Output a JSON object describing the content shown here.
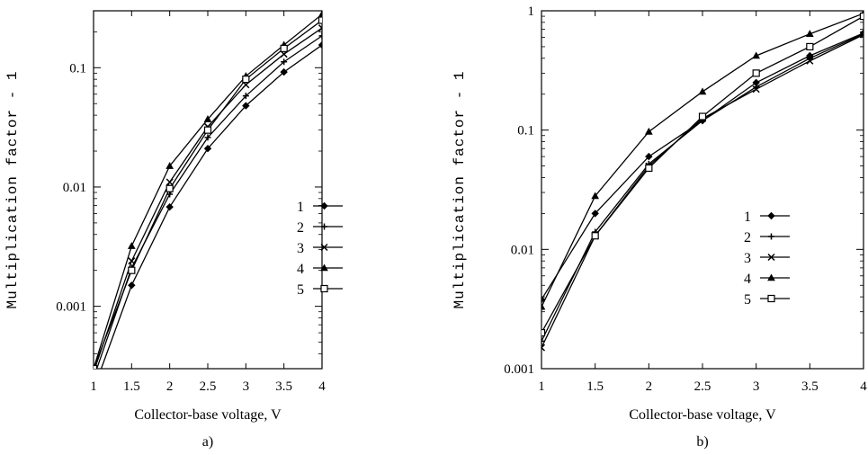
{
  "chart_data": [
    {
      "type": "line",
      "panel_caption": "a)",
      "xlabel": "Collector-base voltage, V",
      "ylabel": "Multiplication factor - 1",
      "xlim": [
        1,
        4
      ],
      "ylim": [
        0.0003,
        0.3
      ],
      "yscale": "log",
      "grid": false,
      "legend_position": "right-middle",
      "x_ticks": [
        1,
        1.5,
        2,
        2.5,
        3,
        3.5,
        4
      ],
      "x_tick_labels": [
        "1",
        "1.5",
        "2",
        "2.5",
        "3",
        "3.5",
        "4"
      ],
      "y_ticks": [
        0.001,
        0.01,
        0.1
      ],
      "y_tick_labels": [
        "0.001",
        "0.01",
        "0.1"
      ],
      "x": [
        1,
        1.5,
        2,
        2.5,
        3,
        3.5,
        4
      ],
      "series": [
        {
          "name": "1",
          "marker": "diamond",
          "values": [
            0.0002,
            0.0015,
            0.0068,
            0.021,
            0.048,
            0.092,
            0.155
          ]
        },
        {
          "name": "2",
          "marker": "plus",
          "values": [
            0.00025,
            0.0021,
            0.0087,
            0.026,
            0.058,
            0.112,
            0.185
          ]
        },
        {
          "name": "3",
          "marker": "x",
          "values": [
            0.00028,
            0.0024,
            0.011,
            0.032,
            0.072,
            0.13,
            0.215
          ]
        },
        {
          "name": "4",
          "marker": "triangle",
          "values": [
            0.0003,
            0.0032,
            0.015,
            0.037,
            0.085,
            0.155,
            0.28
          ]
        },
        {
          "name": "5",
          "marker": "square",
          "values": [
            0.0003,
            0.002,
            0.0097,
            0.03,
            0.08,
            0.145,
            0.25
          ]
        }
      ]
    },
    {
      "type": "line",
      "panel_caption": "b)",
      "xlabel": "Collector-base voltage, V",
      "ylabel": "Multiplication factor - 1",
      "xlim": [
        1,
        4
      ],
      "ylim": [
        0.001,
        1
      ],
      "yscale": "log",
      "grid": false,
      "legend_position": "right-middle",
      "x_ticks": [
        1,
        1.5,
        2,
        2.5,
        3,
        3.5,
        4
      ],
      "x_tick_labels": [
        "1",
        "1.5",
        "2",
        "2.5",
        "3",
        "3.5",
        "4"
      ],
      "y_ticks": [
        0.001,
        0.01,
        0.1,
        1
      ],
      "y_tick_labels": [
        "0.001",
        "0.01",
        "0.1",
        "1"
      ],
      "x": [
        1,
        1.5,
        2,
        2.5,
        3,
        3.5,
        4
      ],
      "series": [
        {
          "name": "1",
          "marker": "diamond",
          "values": [
            0.0038,
            0.02,
            0.06,
            0.12,
            0.25,
            0.42,
            0.65
          ]
        },
        {
          "name": "2",
          "marker": "plus",
          "values": [
            0.0017,
            0.014,
            0.052,
            0.12,
            0.23,
            0.4,
            0.64
          ]
        },
        {
          "name": "3",
          "marker": "x",
          "values": [
            0.0015,
            0.013,
            0.05,
            0.125,
            0.22,
            0.38,
            0.63
          ]
        },
        {
          "name": "4",
          "marker": "triangle",
          "values": [
            0.0033,
            0.028,
            0.097,
            0.21,
            0.42,
            0.64,
            0.95
          ]
        },
        {
          "name": "5",
          "marker": "square",
          "values": [
            0.002,
            0.013,
            0.048,
            0.13,
            0.3,
            0.5,
            0.9
          ]
        }
      ]
    }
  ]
}
